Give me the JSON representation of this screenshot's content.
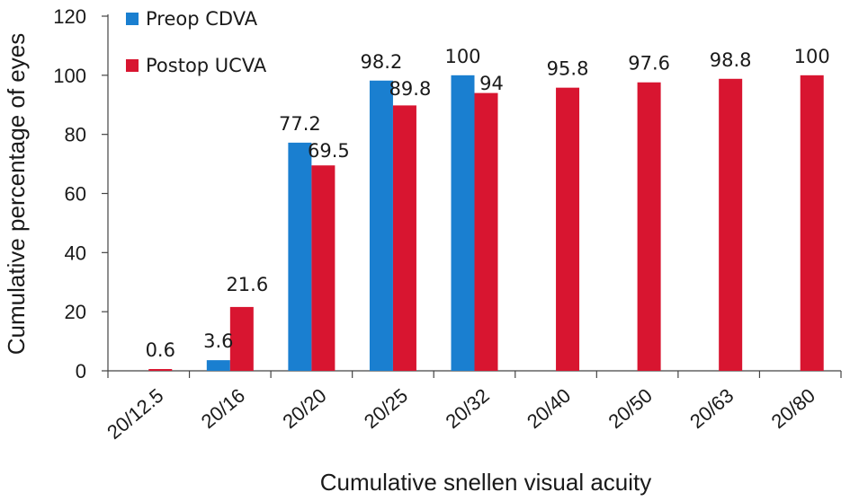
{
  "chart_data": {
    "type": "bar",
    "categories": [
      "20/12.5",
      "20/16",
      "20/20",
      "20/25",
      "20/32",
      "20/40",
      "20/50",
      "20/63",
      "20/80"
    ],
    "series": [
      {
        "name": "Preop CDVA",
        "color": "#1a7fd0",
        "values": [
          null,
          3.6,
          77.2,
          98.2,
          100,
          null,
          null,
          null,
          null
        ],
        "labels": [
          "",
          "3.6",
          "77.2",
          "98.2",
          "100",
          "",
          "",
          "",
          ""
        ]
      },
      {
        "name": "Postop UCVA",
        "color": "#d81530",
        "values": [
          0.6,
          21.6,
          69.5,
          89.8,
          94,
          95.8,
          97.6,
          98.8,
          100
        ],
        "labels": [
          "0.6",
          "21.6",
          "69.5",
          "89.8",
          "94",
          "95.8",
          "97.6",
          "98.8",
          "100"
        ]
      }
    ],
    "xlabel": "Cumulative snellen visual acuity",
    "ylabel": "Cumulative percentage of eyes",
    "ylim": [
      0,
      120
    ],
    "yticks": [
      0,
      20,
      40,
      60,
      80,
      100,
      120
    ],
    "grid": false,
    "legend_position": "top-left"
  }
}
